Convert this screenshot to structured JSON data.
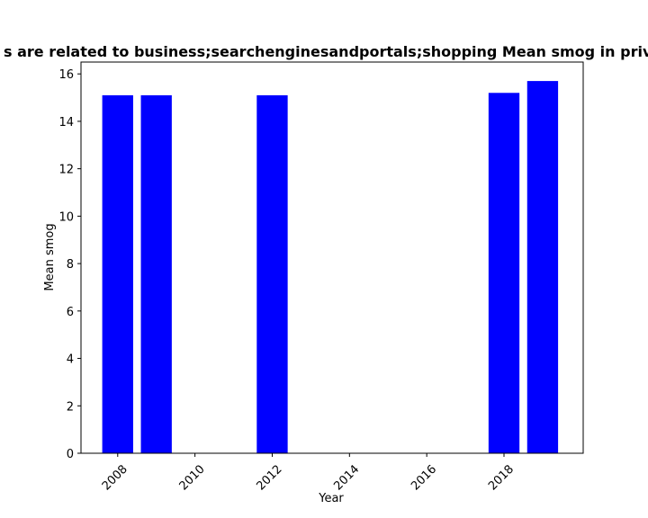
{
  "chart_data": {
    "type": "bar",
    "title": "s are related to business;searchenginesandportals;shopping Mean smog in private",
    "xlabel": "Year",
    "ylabel": "Mean smog",
    "x": [
      2008,
      2009,
      2012,
      2018,
      2019
    ],
    "values": [
      15.1,
      15.1,
      15.1,
      15.2,
      15.7
    ],
    "xlim": [
      2007.05,
      2020.05
    ],
    "ylim": [
      0,
      16.5
    ],
    "xticks": [
      2008,
      2010,
      2012,
      2014,
      2016,
      2018
    ],
    "yticks": [
      0,
      2,
      4,
      6,
      8,
      10,
      12,
      14,
      16
    ],
    "bar_color": "#0000ff",
    "grid": false,
    "legend": "none"
  }
}
